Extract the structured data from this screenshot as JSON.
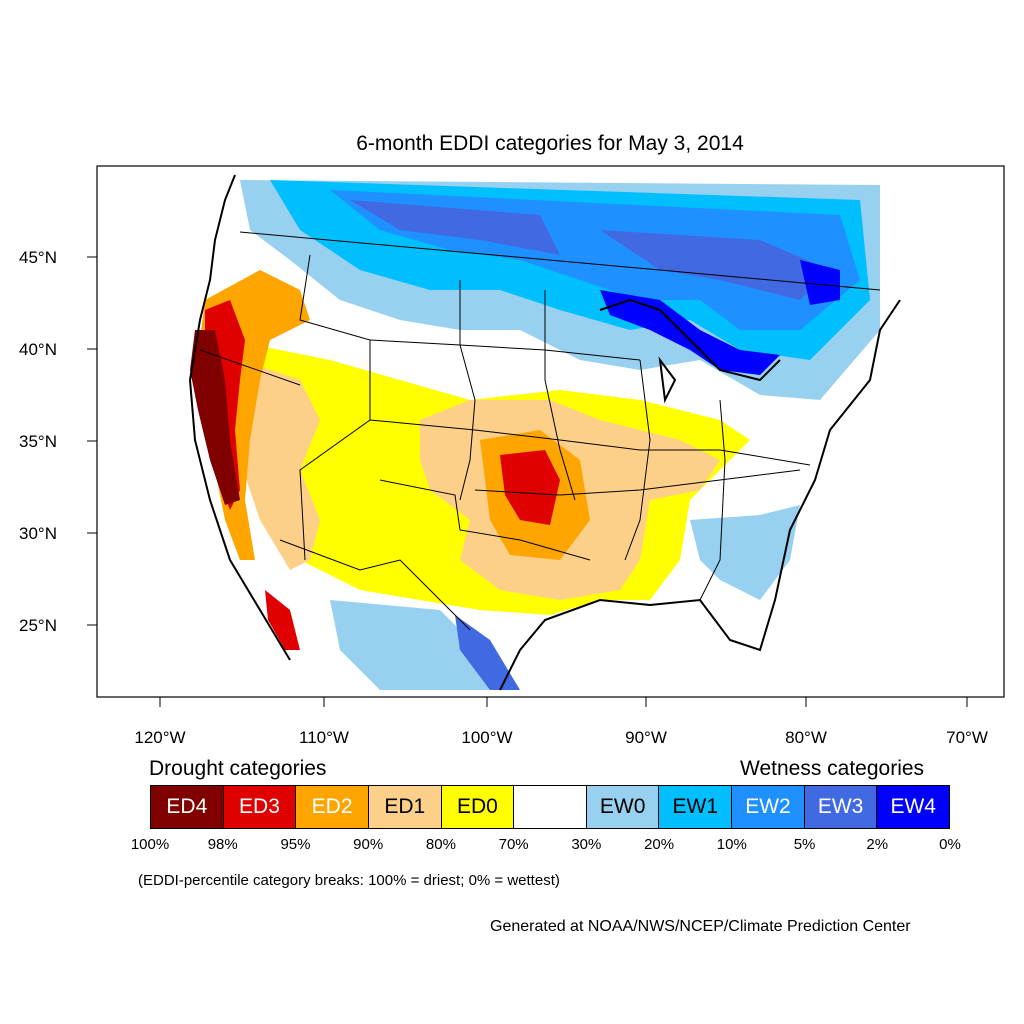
{
  "title": "6-month EDDI categories for May 3, 2014",
  "colors": {
    "ED4": "#800000",
    "ED3": "#e00000",
    "ED2": "#ffa500",
    "ED1": "#fdd08a",
    "ED0": "#ffff00",
    "none": "#ffffff",
    "EW0": "#98d0f0",
    "EW1": "#00bfff",
    "EW2": "#1e90ff",
    "EW3": "#4169e1",
    "EW4": "#0000ff"
  },
  "map": {
    "x_ticks": [
      "120°W",
      "110°W",
      "100°W",
      "90°W",
      "80°W",
      "70°W"
    ],
    "y_ticks": [
      "45°N",
      "40°N",
      "35°N",
      "30°N",
      "25°N"
    ]
  },
  "legend": {
    "drought_title": "Drought categories",
    "wetness_title": "Wetness categories",
    "categories": [
      {
        "label": "ED4",
        "key": "ED4",
        "text_color": "#ffffff"
      },
      {
        "label": "ED3",
        "key": "ED3",
        "text_color": "#ffffff"
      },
      {
        "label": "ED2",
        "key": "ED2",
        "text_color": "#ffffff"
      },
      {
        "label": "ED1",
        "key": "ED1",
        "text_color": "#000000"
      },
      {
        "label": "ED0",
        "key": "ED0",
        "text_color": "#000000"
      },
      {
        "label": "",
        "key": "none",
        "text_color": "#000000"
      },
      {
        "label": "EW0",
        "key": "EW0",
        "text_color": "#000000"
      },
      {
        "label": "EW1",
        "key": "EW1",
        "text_color": "#000000"
      },
      {
        "label": "EW2",
        "key": "EW2",
        "text_color": "#ffffff"
      },
      {
        "label": "EW3",
        "key": "EW3",
        "text_color": "#ffffff"
      },
      {
        "label": "EW4",
        "key": "EW4",
        "text_color": "#ffffff"
      }
    ],
    "breaks": [
      "100%",
      "98%",
      "95%",
      "90%",
      "80%",
      "70%",
      "30%",
      "20%",
      "10%",
      "5%",
      "2%",
      "0%"
    ]
  },
  "note": "(EDDI-percentile category breaks: 100% = driest; 0% = wettest)",
  "credit": "Generated at NOAA/NWS/NCEP/Climate Prediction Center"
}
